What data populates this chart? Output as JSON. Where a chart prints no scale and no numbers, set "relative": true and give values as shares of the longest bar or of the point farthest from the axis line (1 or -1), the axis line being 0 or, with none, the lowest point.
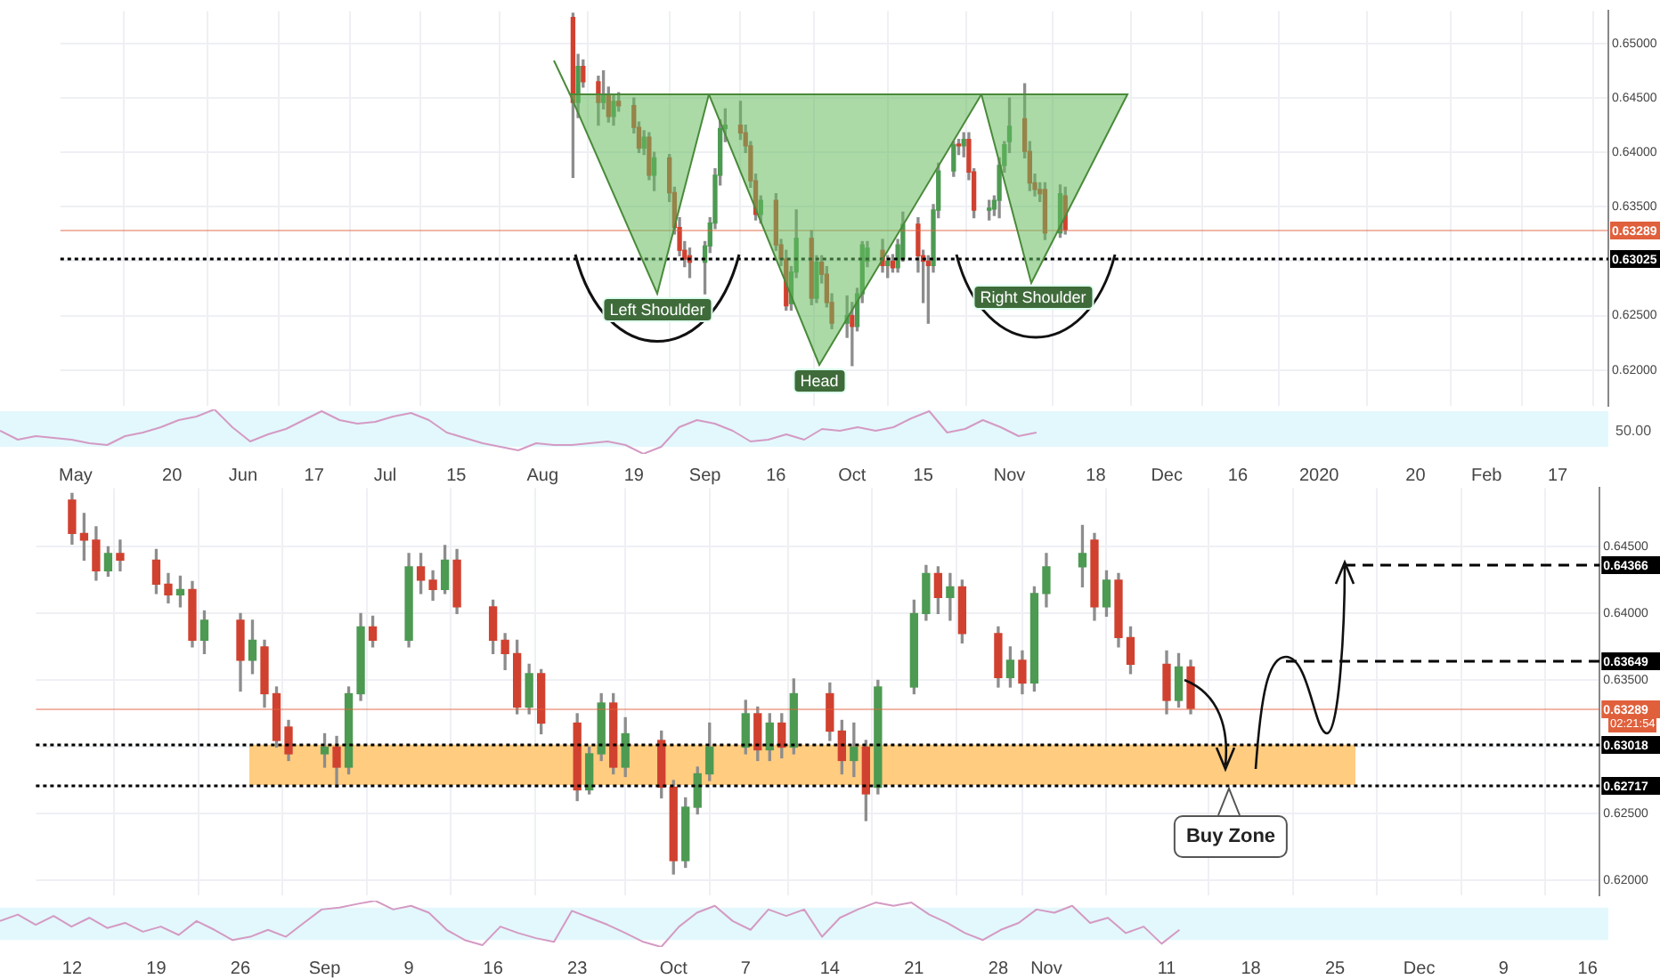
{
  "chart_data": [
    {
      "type": "candlestick",
      "grid": true,
      "x": [
        "2019-08-07",
        "2019-08-08",
        "2019-08-09",
        "2019-08-12",
        "2019-08-13",
        "2019-08-14",
        "2019-08-15",
        "2019-08-16",
        "2019-08-19",
        "2019-08-20",
        "2019-08-21",
        "2019-08-22",
        "2019-08-23",
        "2019-08-26",
        "2019-08-27",
        "2019-08-28",
        "2019-08-29",
        "2019-08-30",
        "2019-09-02",
        "2019-09-03",
        "2019-09-04",
        "2019-09-05",
        "2019-09-06",
        "2019-09-09",
        "2019-09-10",
        "2019-09-11",
        "2019-09-12",
        "2019-09-13",
        "2019-09-16",
        "2019-09-17",
        "2019-09-18",
        "2019-09-19",
        "2019-09-20",
        "2019-09-23",
        "2019-09-24",
        "2019-09-25",
        "2019-09-26",
        "2019-09-27",
        "2019-09-30",
        "2019-10-01",
        "2019-10-02",
        "2019-10-03",
        "2019-10-04",
        "2019-10-07",
        "2019-10-08",
        "2019-10-09",
        "2019-10-10",
        "2019-10-11",
        "2019-10-14",
        "2019-10-15",
        "2019-10-16",
        "2019-10-17",
        "2019-10-18",
        "2019-10-21",
        "2019-10-22",
        "2019-10-23",
        "2019-10-24",
        "2019-10-25",
        "2019-10-28",
        "2019-10-29",
        "2019-10-30",
        "2019-10-31",
        "2019-11-01",
        "2019-11-04",
        "2019-11-05",
        "2019-11-06",
        "2019-11-07",
        "2019-11-08",
        "2019-11-11",
        "2019-11-12"
      ],
      "ohlc": [
        [
          0.6524,
          0.6528,
          0.6377,
          0.6446
        ],
        [
          0.6446,
          0.649,
          0.6432,
          0.6479
        ],
        [
          0.6479,
          0.6485,
          0.646,
          0.6465
        ],
        [
          0.6465,
          0.647,
          0.6425,
          0.6446
        ],
        [
          0.6446,
          0.6475,
          0.644,
          0.6452
        ],
        [
          0.6452,
          0.646,
          0.6428,
          0.6433
        ],
        [
          0.6433,
          0.6452,
          0.6425,
          0.6447
        ],
        [
          0.6447,
          0.6455,
          0.6438,
          0.6443
        ],
        [
          0.6443,
          0.645,
          0.6418,
          0.6423
        ],
        [
          0.6423,
          0.6428,
          0.64,
          0.6404
        ],
        [
          0.6404,
          0.642,
          0.6398,
          0.6414
        ],
        [
          0.6414,
          0.6418,
          0.6375,
          0.6379
        ],
        [
          0.6379,
          0.64,
          0.6365,
          0.6395
        ],
        [
          0.6395,
          0.6398,
          0.6355,
          0.6363
        ],
        [
          0.6363,
          0.6368,
          0.6325,
          0.6331
        ],
        [
          0.6331,
          0.634,
          0.6305,
          0.631
        ],
        [
          0.631,
          0.6318,
          0.6295,
          0.6302
        ],
        [
          0.6305,
          0.6312,
          0.6285,
          0.6299
        ],
        [
          0.6299,
          0.6318,
          0.627,
          0.6314
        ],
        [
          0.6314,
          0.634,
          0.6308,
          0.6335
        ],
        [
          0.6335,
          0.6385,
          0.633,
          0.6379
        ],
        [
          0.6379,
          0.643,
          0.637,
          0.6422
        ],
        [
          0.6422,
          0.644,
          0.641,
          0.6425
        ],
        [
          0.6425,
          0.6447,
          0.6412,
          0.6418
        ],
        [
          0.6418,
          0.6425,
          0.64,
          0.6406
        ],
        [
          0.6406,
          0.641,
          0.6368,
          0.6374
        ],
        [
          0.6374,
          0.638,
          0.6338,
          0.6343
        ],
        [
          0.6343,
          0.636,
          0.6335,
          0.6356
        ],
        [
          0.6356,
          0.6362,
          0.631,
          0.6315
        ],
        [
          0.6315,
          0.632,
          0.6296,
          0.6302
        ],
        [
          0.6302,
          0.631,
          0.6255,
          0.6259
        ],
        [
          0.6261,
          0.6295,
          0.6255,
          0.629
        ],
        [
          0.629,
          0.6347,
          0.6285,
          0.6321
        ],
        [
          0.6321,
          0.6328,
          0.626,
          0.6266
        ],
        [
          0.6266,
          0.6305,
          0.6262,
          0.6299
        ],
        [
          0.6299,
          0.6305,
          0.628,
          0.6288
        ],
        [
          0.6288,
          0.6295,
          0.6258,
          0.6262
        ],
        [
          0.6262,
          0.627,
          0.6238,
          0.6243
        ],
        [
          0.6243,
          0.6268,
          0.623,
          0.625
        ],
        [
          0.625,
          0.6262,
          0.6204,
          0.624
        ],
        [
          0.624,
          0.6275,
          0.6236,
          0.627
        ],
        [
          0.627,
          0.6318,
          0.6262,
          0.6315
        ],
        [
          0.63,
          0.6318,
          0.6295,
          0.6312
        ],
        [
          0.631,
          0.632,
          0.629,
          0.6296
        ],
        [
          0.6296,
          0.6305,
          0.6285,
          0.63
        ],
        [
          0.63,
          0.6306,
          0.629,
          0.6294
        ],
        [
          0.6294,
          0.632,
          0.629,
          0.6315
        ],
        [
          0.6302,
          0.6345,
          0.63,
          0.6334
        ],
        [
          0.6334,
          0.634,
          0.629,
          0.6305
        ],
        [
          0.6305,
          0.631,
          0.6262,
          0.63
        ],
        [
          0.63,
          0.6305,
          0.6243,
          0.6296
        ],
        [
          0.6296,
          0.6352,
          0.629,
          0.6347
        ],
        [
          0.6347,
          0.639,
          0.634,
          0.6383
        ],
        [
          0.6383,
          0.641,
          0.6378,
          0.6407
        ],
        [
          0.6407,
          0.6412,
          0.6398,
          0.6406
        ],
        [
          0.6406,
          0.6418,
          0.6396,
          0.6412
        ],
        [
          0.6412,
          0.6418,
          0.6375,
          0.6382
        ],
        [
          0.6382,
          0.6385,
          0.634,
          0.6347
        ],
        [
          0.6347,
          0.6356,
          0.6338,
          0.6348
        ],
        [
          0.6348,
          0.636,
          0.6342,
          0.6356
        ],
        [
          0.6356,
          0.6395,
          0.634,
          0.6388
        ],
        [
          0.6388,
          0.641,
          0.6382,
          0.6407
        ],
        [
          0.641,
          0.645,
          0.64,
          0.6424
        ],
        [
          0.6431,
          0.6463,
          0.6395,
          0.6401
        ],
        [
          0.6401,
          0.641,
          0.6365,
          0.6372
        ],
        [
          0.6372,
          0.638,
          0.636,
          0.6366
        ],
        [
          0.6366,
          0.6372,
          0.6355,
          0.6362
        ],
        [
          0.6366,
          0.6372,
          0.632,
          0.6326
        ],
        [
          0.6326,
          0.637,
          0.6322,
          0.6362
        ],
        [
          0.636,
          0.6368,
          0.6325,
          0.6329
        ]
      ],
      "xlim": [
        "2019-04-28",
        "2020-02-27"
      ],
      "xticks": [
        {
          "value": "2019-05-01",
          "label": "May"
        },
        {
          "value": "2019-05-20",
          "label": "20"
        },
        {
          "value": "2019-06-03",
          "label": "Jun"
        },
        {
          "value": "2019-06-17",
          "label": "17"
        },
        {
          "value": "2019-07-01",
          "label": "Jul"
        },
        {
          "value": "2019-07-15",
          "label": "15"
        },
        {
          "value": "2019-08-01",
          "label": "Aug"
        },
        {
          "value": "2019-08-19",
          "label": "19"
        },
        {
          "value": "2019-09-02",
          "label": "Sep"
        },
        {
          "value": "2019-09-16",
          "label": "16"
        },
        {
          "value": "2019-10-01",
          "label": "Oct"
        },
        {
          "value": "2019-10-15",
          "label": "15"
        },
        {
          "value": "2019-11-01",
          "label": "Nov"
        },
        {
          "value": "2019-11-18",
          "label": "18"
        },
        {
          "value": "2019-12-02",
          "label": "Dec"
        },
        {
          "value": "2019-12-16",
          "label": "16"
        },
        {
          "value": "2020-01-01",
          "label": "2020"
        },
        {
          "value": "2020-01-20",
          "label": "20"
        },
        {
          "value": "2020-02-03",
          "label": "Feb"
        },
        {
          "value": "2020-02-17",
          "label": "17"
        }
      ],
      "ylim": [
        0.6167,
        0.653
      ],
      "yticks": [
        {
          "value": 0.62,
          "label": "0.62000"
        },
        {
          "value": 0.625,
          "label": "0.62500"
        },
        {
          "value": 0.63,
          "label": null
        },
        {
          "value": 0.635,
          "label": "0.63500"
        },
        {
          "value": 0.64,
          "label": "0.64000"
        },
        {
          "value": 0.645,
          "label": "0.64500"
        },
        {
          "value": 0.65,
          "label": "0.65000"
        }
      ],
      "ref_lines": [
        {
          "axis": "y",
          "value": 0.63289,
          "label": "0.63289",
          "color": "#e0603c",
          "line_style": "solid"
        },
        {
          "axis": "y",
          "value": 0.63025,
          "label": "0.63025",
          "color": "#000000",
          "line_style": "dotted"
        }
      ],
      "annotations": [
        "Left Shoulder",
        "Head",
        "Right Shoulder"
      ]
    },
    {
      "type": "line",
      "relative": true,
      "tick_labels": false,
      "categories": [
        null,
        null,
        null,
        null,
        null,
        null,
        null,
        null,
        null,
        null,
        null,
        null,
        null,
        null,
        null,
        null,
        null,
        null,
        null,
        null,
        null,
        null,
        null,
        null,
        null,
        null,
        null,
        null,
        null,
        null,
        null,
        null,
        null,
        null,
        null,
        null,
        null,
        null,
        null,
        null,
        null,
        null,
        null,
        null,
        null,
        null,
        null,
        null,
        null,
        null,
        null,
        null,
        null,
        null,
        null,
        null,
        null,
        null,
        null,
        null,
        null,
        null,
        null,
        null,
        null,
        null,
        null,
        null,
        null,
        null,
        null,
        null,
        null,
        null,
        null,
        null,
        null,
        null,
        null,
        null,
        null,
        null,
        null,
        null,
        null,
        null,
        null,
        null,
        null,
        null,
        null
      ],
      "series": [
        {
          "color": "#d49ac4",
          "values": [
            0.52,
            0.32,
            0.4,
            0.36,
            0.32,
            0.24,
            0.2,
            0.4,
            0.48,
            0.6,
            0.76,
            0.84,
            1,
            0.6,
            0.28,
            0.44,
            0.56,
            0.76,
            0.96,
            0.76,
            0.68,
            0.72,
            0.84,
            0.92,
            0.76,
            0.48,
            0.36,
            0.24,
            0.16,
            0.08,
            0.24,
            0.2,
            0.2,
            0.24,
            0.28,
            0.2,
            0,
            0.16,
            0.6,
            0.76,
            0.68,
            0.52,
            0.28,
            0.32,
            0.44,
            0.32,
            0.56,
            0.52,
            0.6,
            0.52,
            0.6,
            0.8,
            0.96,
            0.48,
            0.56,
            0.76,
            0.6,
            0.4,
            0.48,
            null,
            null,
            null,
            null,
            null,
            null,
            null,
            null,
            null,
            null,
            null,
            null,
            null,
            null,
            null,
            null,
            null,
            null,
            null,
            null,
            null,
            null,
            null,
            null,
            null,
            null,
            null,
            null,
            null,
            null,
            null,
            null
          ]
        }
      ],
      "bands": [
        {
          "axis": "y",
          "from": 0.16,
          "to": 0.96,
          "color": "#e3f8fc"
        }
      ],
      "annotations": [
        "50.00"
      ]
    },
    {
      "type": "candlestick",
      "grid": true,
      "x": [
        "--08-12",
        "--08-13",
        "--08-14",
        "--08-15",
        "--08-16",
        "--08-19",
        "--08-20",
        "--08-21",
        "--08-22",
        "--08-23",
        "--08-26",
        "--08-27",
        "--08-28",
        "--08-29",
        "--08-30",
        "--09-02",
        "--09-03",
        "--09-04",
        "--09-05",
        "--09-06",
        "--09-09",
        "--09-10",
        "--09-11",
        "--09-12",
        "--09-13",
        "--09-16",
        "--09-17",
        "--09-18",
        "--09-19",
        "--09-20",
        "--09-23",
        "--09-24",
        "--09-25",
        "--09-26",
        "--09-27",
        "--09-30",
        "--10-01",
        "--10-02",
        "--10-03",
        "--10-04",
        "--10-07",
        "--10-08",
        "--10-09",
        "--10-10",
        "--10-11",
        "--10-14",
        "--10-15",
        "--10-16",
        "--10-17",
        "--10-18",
        "--10-21",
        "--10-22",
        "--10-23",
        "--10-24",
        "--10-25",
        "--10-28",
        "--10-29",
        "--10-30",
        "--10-31",
        "--11-01",
        "--11-04",
        "--11-05",
        "--11-06",
        "--11-07",
        "--11-08",
        "--11-11",
        "--11-12",
        "--11-13"
      ],
      "ohlc": [
        [
          0.6485,
          0.649,
          0.6452,
          0.646
        ],
        [
          0.646,
          0.6475,
          0.644,
          0.6455
        ],
        [
          0.6455,
          0.6465,
          0.6425,
          0.6432
        ],
        [
          0.6432,
          0.645,
          0.6428,
          0.6445
        ],
        [
          0.6445,
          0.6455,
          0.6432,
          0.644
        ],
        [
          0.644,
          0.6448,
          0.6415,
          0.6422
        ],
        [
          0.6422,
          0.643,
          0.6408,
          0.6414
        ],
        [
          0.6414,
          0.6428,
          0.6405,
          0.6418
        ],
        [
          0.6418,
          0.6424,
          0.6375,
          0.638
        ],
        [
          0.638,
          0.6402,
          0.637,
          0.6395
        ],
        [
          0.6395,
          0.64,
          0.6342,
          0.6365
        ],
        [
          0.6365,
          0.6395,
          0.6355,
          0.638
        ],
        [
          0.6375,
          0.638,
          0.633,
          0.634
        ],
        [
          0.634,
          0.6345,
          0.63,
          0.6305
        ],
        [
          0.6315,
          0.632,
          0.629,
          0.6295
        ],
        [
          0.6295,
          0.631,
          0.6285,
          0.63
        ],
        [
          0.63,
          0.6308,
          0.627,
          0.6285
        ],
        [
          0.6285,
          0.6345,
          0.628,
          0.634
        ],
        [
          0.634,
          0.64,
          0.6335,
          0.639
        ],
        [
          0.639,
          0.6398,
          0.6375,
          0.638
        ],
        [
          0.638,
          0.6445,
          0.6375,
          0.6435
        ],
        [
          0.6435,
          0.6445,
          0.6415,
          0.6425
        ],
        [
          0.6425,
          0.6432,
          0.641,
          0.6418
        ],
        [
          0.6418,
          0.6451,
          0.6415,
          0.644
        ],
        [
          0.644,
          0.6448,
          0.64,
          0.6405
        ],
        [
          0.6405,
          0.641,
          0.637,
          0.638
        ],
        [
          0.638,
          0.6385,
          0.6358,
          0.637
        ],
        [
          0.637,
          0.638,
          0.6325,
          0.633
        ],
        [
          0.633,
          0.6362,
          0.6325,
          0.6355
        ],
        [
          0.6355,
          0.6358,
          0.631,
          0.6318
        ],
        [
          0.6318,
          0.6325,
          0.626,
          0.6268
        ],
        [
          0.6268,
          0.63,
          0.6265,
          0.6295
        ],
        [
          0.6295,
          0.634,
          0.629,
          0.6333
        ],
        [
          0.6333,
          0.634,
          0.628,
          0.6285
        ],
        [
          0.6285,
          0.6322,
          0.6278,
          0.631
        ],
        [
          0.6305,
          0.6312,
          0.6262,
          0.627
        ],
        [
          0.627,
          0.6275,
          0.6205,
          0.6215
        ],
        [
          0.6215,
          0.6262,
          0.621,
          0.6255
        ],
        [
          0.6255,
          0.6285,
          0.625,
          0.628
        ],
        [
          0.628,
          0.6318,
          0.6275,
          0.63
        ],
        [
          0.63,
          0.6335,
          0.6295,
          0.6325
        ],
        [
          0.6325,
          0.633,
          0.629,
          0.6298
        ],
        [
          0.6298,
          0.6325,
          0.629,
          0.6318
        ],
        [
          0.6318,
          0.6325,
          0.6292,
          0.63
        ],
        [
          0.63,
          0.6351,
          0.6295,
          0.634
        ],
        [
          0.634,
          0.6348,
          0.6305,
          0.6312
        ],
        [
          0.6312,
          0.632,
          0.628,
          0.629
        ],
        [
          0.629,
          0.6318,
          0.6278,
          0.63
        ],
        [
          0.63,
          0.6305,
          0.6245,
          0.6265
        ],
        [
          0.627,
          0.635,
          0.6265,
          0.6345
        ],
        [
          0.6345,
          0.641,
          0.634,
          0.64
        ],
        [
          0.64,
          0.6436,
          0.6395,
          0.643
        ],
        [
          0.643,
          0.6435,
          0.64,
          0.6412
        ],
        [
          0.6412,
          0.643,
          0.6395,
          0.642
        ],
        [
          0.642,
          0.6425,
          0.6378,
          0.6385
        ],
        [
          0.6385,
          0.639,
          0.6345,
          0.6352
        ],
        [
          0.6352,
          0.6375,
          0.6345,
          0.6365
        ],
        [
          0.6365,
          0.6372,
          0.634,
          0.6348
        ],
        [
          0.6348,
          0.642,
          0.6342,
          0.6415
        ],
        [
          0.6415,
          0.6445,
          0.6405,
          0.6435
        ],
        [
          0.6435,
          0.6466,
          0.642,
          0.6445
        ],
        [
          0.6455,
          0.646,
          0.6395,
          0.6405
        ],
        [
          0.6405,
          0.6432,
          0.6398,
          0.6425
        ],
        [
          0.6425,
          0.643,
          0.6375,
          0.6382
        ],
        [
          0.6382,
          0.639,
          0.6355,
          0.6362
        ],
        [
          0.6362,
          0.6372,
          0.6325,
          0.6335
        ],
        [
          0.6335,
          0.637,
          0.633,
          0.636
        ],
        [
          0.636,
          0.6365,
          0.6325,
          0.6329
        ]
      ],
      "xlim": [
        "--08-09",
        "--12-17"
      ],
      "xticks": [
        {
          "value": "--08-12",
          "label": "12"
        },
        {
          "value": "--08-19",
          "label": "19"
        },
        {
          "value": "--08-26",
          "label": "26"
        },
        {
          "value": "--09-02",
          "label": "Sep"
        },
        {
          "value": "--09-09",
          "label": "9"
        },
        {
          "value": "--09-16",
          "label": "16"
        },
        {
          "value": "--09-23",
          "label": "23"
        },
        {
          "value": "--10-01",
          "label": "Oct"
        },
        {
          "value": "--10-07",
          "label": "7"
        },
        {
          "value": "--10-14",
          "label": "14"
        },
        {
          "value": "--10-21",
          "label": "21"
        },
        {
          "value": "--10-28",
          "label": "28"
        },
        {
          "value": "--11-01",
          "label": "Nov"
        },
        {
          "value": "--11-11",
          "label": "11"
        },
        {
          "value": "--11-18",
          "label": "18"
        },
        {
          "value": "--11-25",
          "label": "25"
        },
        {
          "value": "--12-02",
          "label": "Dec"
        },
        {
          "value": "--12-09",
          "label": "9"
        },
        {
          "value": "--12-16",
          "label": "16"
        }
      ],
      "ylim": [
        0.6189,
        0.6494
      ],
      "yticks": [
        {
          "value": 0.62,
          "label": "0.62000"
        },
        {
          "value": 0.625,
          "label": "0.62500"
        },
        {
          "value": 0.63,
          "label": null
        },
        {
          "value": 0.635,
          "label": "0.63500"
        },
        {
          "value": 0.64,
          "label": "0.64000"
        },
        {
          "value": 0.645,
          "label": "0.64500"
        }
      ],
      "bands": [
        {
          "axis": "y",
          "from": 0.62717,
          "to": 0.63018,
          "color": "#ffcc80"
        }
      ],
      "ref_lines": [
        {
          "axis": "y",
          "value": 0.64366,
          "label": "0.64366",
          "color": "#000000",
          "line_style": "dashed"
        },
        {
          "axis": "y",
          "value": 0.63649,
          "label": "0.63649",
          "color": "#000000",
          "line_style": "dashed"
        },
        {
          "axis": "y",
          "value": 0.63289,
          "label": "0.63289",
          "color": "#e0603c",
          "line_style": "solid"
        },
        {
          "axis": "y",
          "value": 0.63018,
          "label": "0.63018",
          "color": "#000000",
          "line_style": "dotted"
        },
        {
          "axis": "y",
          "value": 0.62717,
          "label": "0.62717",
          "color": "#000000",
          "line_style": "dotted"
        }
      ],
      "annotations": [
        "02:21:54",
        "Buy Zone"
      ]
    },
    {
      "type": "line",
      "relative": true,
      "tick_labels": false,
      "categories": [
        null,
        null,
        null,
        null,
        null,
        null,
        null,
        null,
        null,
        null,
        null,
        null,
        null,
        null,
        null,
        null,
        null,
        null,
        null,
        null,
        null,
        null,
        null,
        null,
        null,
        null,
        null,
        null,
        null,
        null,
        null,
        null,
        null,
        null,
        null,
        null,
        null,
        null,
        null,
        null,
        null,
        null,
        null,
        null,
        null,
        null,
        null,
        null,
        null,
        null,
        null,
        null,
        null,
        null,
        null,
        null,
        null,
        null,
        null,
        null,
        null,
        null,
        null,
        null,
        null,
        null,
        null,
        null,
        null,
        null,
        null,
        null,
        null,
        null,
        null,
        null,
        null,
        null,
        null,
        null,
        null,
        null,
        null,
        null,
        null,
        null,
        null,
        null,
        null,
        null,
        null
      ],
      "series": [
        {
          "color": "#d49ac4",
          "values": [
            0.56,
            0.7,
            0.48,
            0.67,
            0.44,
            0.63,
            0.41,
            0.52,
            0.33,
            0.44,
            0.26,
            0.56,
            0.37,
            0.15,
            0.22,
            0.37,
            0.22,
            0.52,
            0.81,
            0.85,
            0.93,
            1,
            0.81,
            0.89,
            0.74,
            0.37,
            0.15,
            0.04,
            0.44,
            0.3,
            0.19,
            0.11,
            0.78,
            0.63,
            0.48,
            0.3,
            0.11,
            0,
            0.44,
            0.74,
            0.89,
            0.56,
            0.37,
            0.81,
            0.67,
            0.81,
            0.22,
            0.63,
            0.81,
            0.96,
            0.89,
            0.96,
            0.7,
            0.52,
            0.3,
            0.15,
            0.37,
            0.52,
            0.81,
            0.74,
            0.89,
            0.52,
            0.63,
            0.3,
            0.44,
            0.07,
            0.37,
            null,
            null,
            null,
            null,
            null,
            null,
            null,
            null,
            null,
            null,
            null,
            null,
            null,
            null,
            null,
            null,
            null,
            null,
            null,
            null,
            null,
            null,
            null,
            null
          ]
        }
      ],
      "bands": [
        {
          "axis": "y",
          "from": 0.15,
          "to": 0.85,
          "color": "#e3f8fc"
        }
      ]
    }
  ]
}
